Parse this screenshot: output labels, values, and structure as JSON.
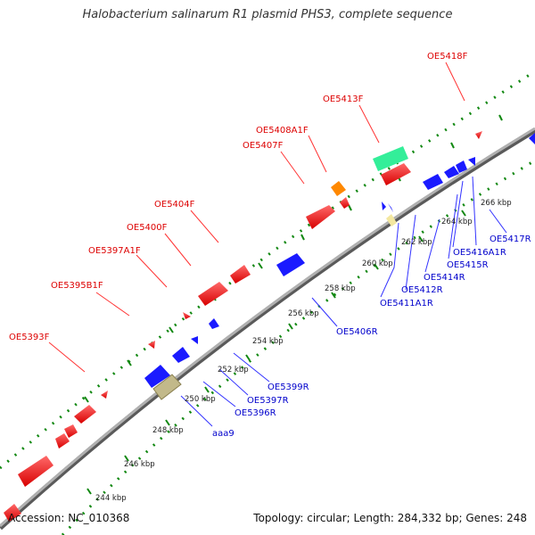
{
  "title": "Halobacterium salinarum R1 plasmid PHS3, complete sequence",
  "accession": "Accession: NC_010368",
  "summary": "Topology: circular; Length: 284,332 bp; Genes: 248",
  "colors": {
    "backbone": "#9a9a9a",
    "forward_feature": "#ff1a1a",
    "reverse_feature": "#1a1aff",
    "forward_label": "#dd0000",
    "reverse_label": "#0000cc",
    "grid": "#118811"
  },
  "ticks": [
    "244 kbp",
    "246 kbp",
    "248 kbp",
    "250 kbp",
    "252 kbp",
    "254 kbp",
    "256 kbp",
    "258 kbp",
    "260 kbp",
    "262 kbp",
    "264 kbp",
    "266 kbp"
  ],
  "forward_labels": [
    "OE5393F",
    "OE5395B1F",
    "OE5397A1F",
    "OE5400F",
    "OE5404F",
    "OE5407F",
    "OE5408A1F",
    "OE5413F",
    "OE5418F"
  ],
  "reverse_labels": [
    "aaa9",
    "OE5396R",
    "OE5397R",
    "OE5399R",
    "OE5406R",
    "OE5411A1R",
    "OE5412R",
    "OE5414R",
    "OE5415R",
    "OE5416A1R",
    "OE5417R"
  ]
}
